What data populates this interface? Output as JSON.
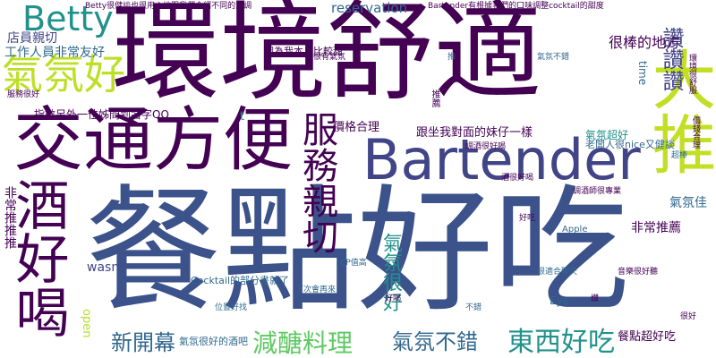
{
  "palette": {
    "deep_purple": "#440154",
    "indigo": "#3b528b",
    "slate_blue": "#414487",
    "steel": "#31688e",
    "teal": "#21918c",
    "sea_green": "#35b779",
    "mint": "#5ec962",
    "lime": "#bddf26",
    "chartreuse": "#b5de2b",
    "ocean": "#2a788e"
  },
  "words": [
    {
      "id": "w01",
      "text": "餐點好吃"
    },
    {
      "id": "w02",
      "text": "環境舒適"
    },
    {
      "id": "w03",
      "text": "Bartender"
    },
    {
      "id": "w04",
      "text": "交通方便"
    },
    {
      "id": "w05",
      "text": "酒好喝"
    },
    {
      "id": "w06",
      "text": "大推"
    },
    {
      "id": "w07",
      "text": "服務親切"
    },
    {
      "id": "w08",
      "text": "氣氛好"
    },
    {
      "id": "w09",
      "text": "Betty"
    },
    {
      "id": "w10",
      "text": "東西好吃"
    },
    {
      "id": "w11",
      "text": "減醣料理"
    },
    {
      "id": "w12",
      "text": "氣氛不錯"
    },
    {
      "id": "w13",
      "text": "新開幕"
    },
    {
      "id": "w14",
      "text": "讚讚讚"
    },
    {
      "id": "w15",
      "text": "很棒的地方"
    },
    {
      "id": "w16",
      "text": "店員親切"
    },
    {
      "id": "w17",
      "text": "工作人員非常友好"
    },
    {
      "id": "w18",
      "text": "跟坐我對面的妹仔一樣"
    },
    {
      "id": "w19",
      "text": "價格合理"
    },
    {
      "id": "w20",
      "text": "氣氛很好"
    },
    {
      "id": "w21",
      "text": "餐點超好吃"
    },
    {
      "id": "w22",
      "text": "非常推薦"
    },
    {
      "id": "w23",
      "text": "氣氛佳"
    },
    {
      "id": "w24",
      "text": "reservation"
    },
    {
      "id": "w25",
      "text": "Betty很健談也很用心地跟我們介紹不同的酒調"
    },
    {
      "id": "w26",
      "text": "Bartender有根據我們的口味調整cocktail的甜度"
    },
    {
      "id": "w27",
      "text": "wasn"
    },
    {
      "id": "w28",
      "text": "open"
    },
    {
      "id": "w29",
      "text": "time"
    },
    {
      "id": "w30",
      "text": "氣氛超好"
    },
    {
      "id": "w31",
      "text": "Cocktail的部分書就了"
    },
    {
      "id": "w32",
      "text": "氣氛很好的酒吧"
    },
    {
      "id": "w33",
      "text": "指數另外一位姊問到名字QQ"
    },
    {
      "id": "w34",
      "text": "因為我本身比較甜"
    },
    {
      "id": "w35",
      "text": "Apple"
    },
    {
      "id": "w36",
      "text": "Eye"
    },
    {
      "id": "w37",
      "text": "t"
    },
    {
      "id": "w38",
      "text": "老闆人很nice又健談"
    },
    {
      "id": "w39",
      "text": "很有氣氛"
    },
    {
      "id": "w40",
      "text": "非常推推推"
    },
    {
      "id": "w41",
      "text": "服務很好"
    },
    {
      "id": "w42",
      "text": "CP值高"
    },
    {
      "id": "w43",
      "text": "調酒很好喝"
    },
    {
      "id": "w44",
      "text": "下次會再來"
    },
    {
      "id": "w45",
      "text": "推薦"
    },
    {
      "id": "w46",
      "text": "氣氛不錯"
    },
    {
      "id": "w47",
      "text": "調酒師很專業"
    },
    {
      "id": "w48",
      "text": "環境很舒服"
    },
    {
      "id": "w49",
      "text": "音樂很好聽"
    },
    {
      "id": "w50",
      "text": "很適合聊天"
    },
    {
      "id": "w51",
      "text": "酒很好喝"
    },
    {
      "id": "w52",
      "text": "價錢合理"
    },
    {
      "id": "w53",
      "text": "位置好找"
    },
    {
      "id": "w54",
      "text": "好喝"
    },
    {
      "id": "w55",
      "text": "不錯"
    },
    {
      "id": "w56",
      "text": "好吃"
    },
    {
      "id": "w57",
      "text": "讚"
    },
    {
      "id": "w58",
      "text": "推"
    },
    {
      "id": "w59",
      "text": "很好"
    },
    {
      "id": "w60",
      "text": "超棒"
    }
  ]
}
